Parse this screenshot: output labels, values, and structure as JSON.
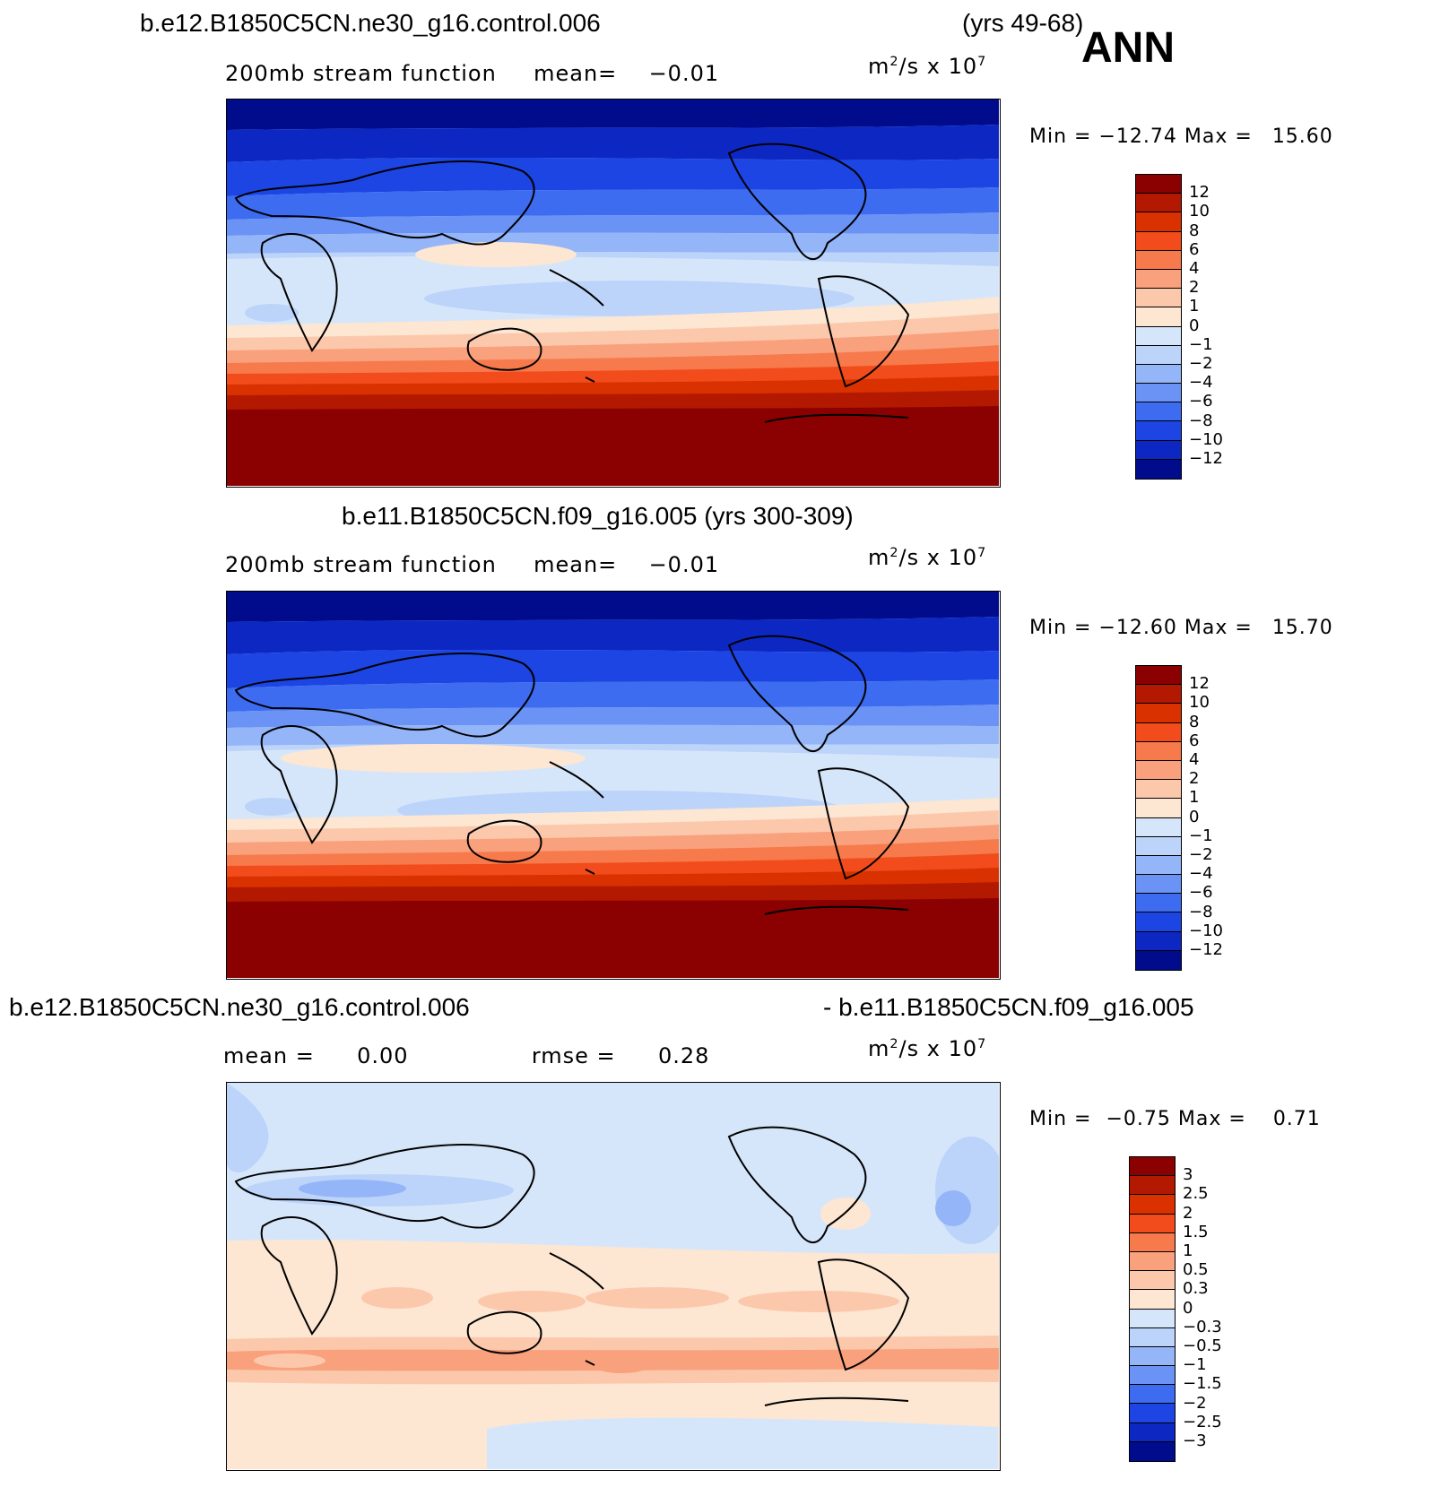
{
  "header": {
    "case1": "b.e12.B1850C5CN.ne30_g16.control.006",
    "years1": "(yrs 49-68)",
    "season": "ANN",
    "case2_title": "b.e11.B1850C5CN.f09_g16.005 (yrs 300-309)",
    "diff_left": "b.e12.B1850C5CN.ne30_g16.control.006",
    "diff_right": "- b.e11.B1850C5CN.f09_g16.005"
  },
  "units": {
    "base": "m",
    "exp1": "2",
    "mid": "/s x 10",
    "exp2": "7"
  },
  "panels": [
    {
      "id": "top",
      "subtitle_left": "200mb stream function",
      "subtitle_mid": "mean=",
      "subtitle_val": "-0.01",
      "min_label": "Min =",
      "min": "-12.74",
      "max_label": "Max =",
      "max": "15.60"
    },
    {
      "id": "middle",
      "subtitle_left": "200mb stream function",
      "subtitle_mid": "mean=",
      "subtitle_val": "-0.01",
      "min_label": "Min =",
      "min": "-12.60",
      "max_label": "Max =",
      "max": "15.70"
    },
    {
      "id": "bottom",
      "subtitle_left": "mean =",
      "subtitle_val": "0.00",
      "rmse_label": "rmse =",
      "rmse": "0.28",
      "min_label": "Min =",
      "min": "-0.75",
      "max_label": "Max =",
      "max": "0.71"
    }
  ],
  "colorbar_main": {
    "labels": [
      "12",
      "10",
      "8",
      "6",
      "4",
      "2",
      "1",
      "0",
      "-1",
      "-2",
      "-4",
      "-6",
      "-8",
      "-10",
      "-12"
    ],
    "colors": [
      "#8b0000",
      "#b31800",
      "#d93100",
      "#f24c1c",
      "#f67a4c",
      "#f9a07c",
      "#fcc8ac",
      "#fde6d2",
      "#d6e6fa",
      "#bcd3fa",
      "#94b5f7",
      "#6b93f5",
      "#3d6cf0",
      "#1c45e3",
      "#0d28c2",
      "#000c8c"
    ]
  },
  "colorbar_diff": {
    "labels": [
      "3",
      "2.5",
      "2",
      "1.5",
      "1",
      "0.5",
      "0.3",
      "0",
      "-0.3",
      "-0.5",
      "-1",
      "-1.5",
      "-2",
      "-2.5",
      "-3"
    ],
    "colors": [
      "#8b0000",
      "#b31800",
      "#d93100",
      "#f24c1c",
      "#f67a4c",
      "#f9a07c",
      "#fcc8ac",
      "#fde6d2",
      "#d6e6fa",
      "#bcd3fa",
      "#94b5f7",
      "#6b93f5",
      "#3d6cf0",
      "#1c45e3",
      "#0d28c2",
      "#000c8c"
    ]
  }
}
